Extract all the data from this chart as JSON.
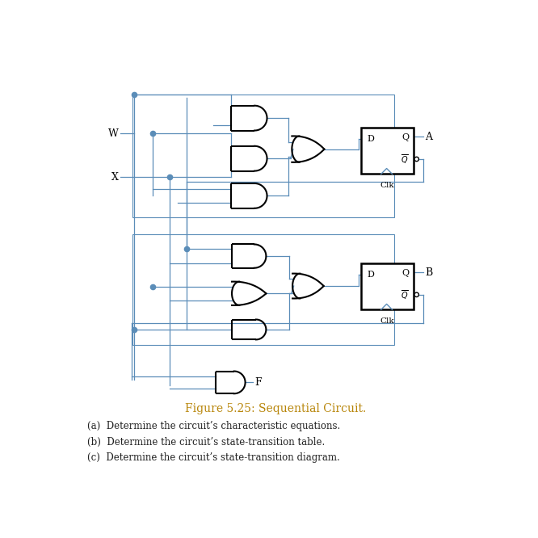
{
  "wire_color": "#5b8db8",
  "gate_color": "#000000",
  "bg_color": "#ffffff",
  "title": "Figure 5.25: Sequential Circuit.",
  "title_color": "#b8860b",
  "items": [
    "(a)  Determine the circuit’s characteristic equations.",
    "(b)  Determine the circuit’s state-transition table.",
    "(c)  Determine the circuit’s state-transition diagram."
  ],
  "figsize": [
    6.66,
    6.66
  ],
  "dpi": 100
}
